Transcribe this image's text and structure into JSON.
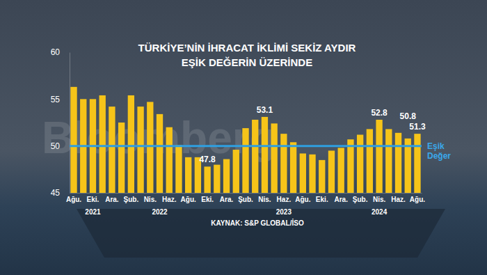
{
  "chart_data": {
    "type": "bar",
    "title": [
      "TÜRKİYE’NİN İHRACAT İKLİMİ SEKİZ AYDIR",
      "EŞİK DEĞERİN ÜZERİNDE"
    ],
    "source": "KAYNAK: S&P GLOBAL/İSO",
    "watermark": "Bloomberg",
    "categories": [
      "Ağu.",
      null,
      "Eki.",
      null,
      "Ara.",
      null,
      "Şub.",
      null,
      "Nis.",
      null,
      "Haz.",
      null,
      "Ağu.",
      null,
      "Eki.",
      null,
      "Ara.",
      null,
      "Şub.",
      null,
      "Nis.",
      null,
      "Haz.",
      null,
      "Ağu.",
      null,
      "Eki.",
      null,
      "Ara.",
      null,
      "Şub.",
      null,
      "Nis.",
      null,
      "Haz.",
      null,
      "Ağu."
    ],
    "year_labels": [
      {
        "text": "2021",
        "index": 2
      },
      {
        "text": "2022",
        "index": 9
      },
      {
        "text": "2023",
        "index": 22
      },
      {
        "text": "2024",
        "index": 32
      }
    ],
    "values": [
      56.3,
      55.0,
      55.0,
      55.4,
      54.2,
      52.5,
      55.4,
      54.2,
      54.7,
      53.4,
      52.0,
      50.1,
      48.8,
      48.8,
      47.8,
      48.0,
      48.6,
      49.6,
      51.9,
      52.8,
      53.1,
      52.4,
      51.3,
      50.4,
      49.2,
      49.1,
      48.5,
      49.5,
      49.8,
      50.7,
      51.2,
      51.8,
      52.8,
      51.8,
      51.4,
      50.8,
      51.3
    ],
    "value_labels": [
      null,
      null,
      null,
      null,
      null,
      null,
      null,
      null,
      null,
      null,
      null,
      null,
      null,
      null,
      "47.8",
      null,
      null,
      null,
      null,
      null,
      "53.1",
      null,
      null,
      null,
      null,
      null,
      null,
      null,
      null,
      null,
      null,
      null,
      "52.8",
      null,
      null,
      "50.8",
      "51.3"
    ],
    "data_labels": true,
    "color": "#f6c419",
    "ylim": [
      45,
      60
    ],
    "yticks": [
      45,
      50,
      55,
      60
    ],
    "threshold": {
      "value": 50,
      "label": [
        "Eşik",
        "Değer"
      ]
    },
    "grid": false
  }
}
